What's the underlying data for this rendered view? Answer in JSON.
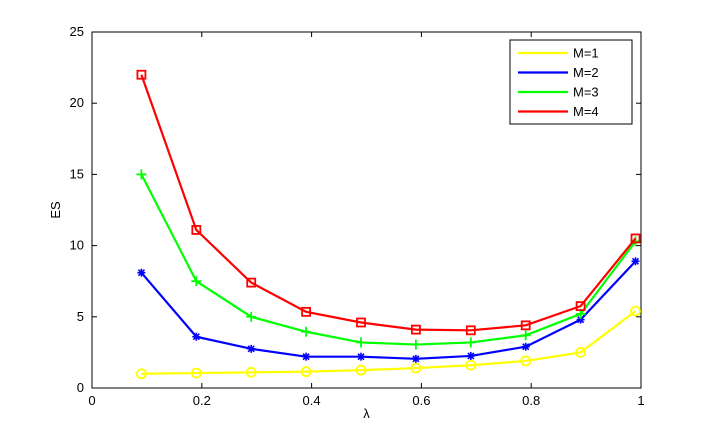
{
  "chart_data": {
    "type": "line",
    "title": "",
    "xlabel": "λ",
    "ylabel": "ES",
    "xlim": [
      0,
      1
    ],
    "ylim": [
      0,
      25
    ],
    "xticks": [
      "0",
      "0.2",
      "0.4",
      "0.6",
      "0.8",
      "1"
    ],
    "xtick_values": [
      0,
      0.2,
      0.4,
      0.6,
      0.8,
      1
    ],
    "yticks": [
      "0",
      "5",
      "10",
      "15",
      "20",
      "25"
    ],
    "ytick_values": [
      0,
      5,
      10,
      15,
      20,
      25
    ],
    "grid": false,
    "legend_position": "top-right",
    "x": [
      0.09,
      0.19,
      0.29,
      0.39,
      0.49,
      0.59,
      0.69,
      0.79,
      0.89,
      0.99
    ],
    "series": [
      {
        "name": "M=1",
        "color": "#ffff00",
        "marker": "circle",
        "values": [
          1.0,
          1.05,
          1.1,
          1.15,
          1.25,
          1.4,
          1.6,
          1.9,
          2.5,
          5.4
        ]
      },
      {
        "name": "M=2",
        "color": "#0000ff",
        "marker": "asterisk",
        "values": [
          8.1,
          3.6,
          2.75,
          2.2,
          2.2,
          2.05,
          2.25,
          2.9,
          4.8,
          8.9
        ]
      },
      {
        "name": "M=3",
        "color": "#00ff00",
        "marker": "plus",
        "values": [
          15.0,
          7.5,
          5.0,
          3.95,
          3.2,
          3.05,
          3.2,
          3.7,
          5.2,
          10.3
        ]
      },
      {
        "name": "M=4",
        "color": "#ff0000",
        "marker": "square",
        "values": [
          22.0,
          11.1,
          7.4,
          5.35,
          4.6,
          4.1,
          4.05,
          4.4,
          5.75,
          10.5
        ]
      }
    ]
  }
}
